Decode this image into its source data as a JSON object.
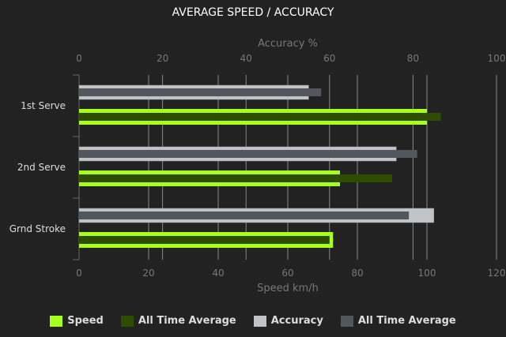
{
  "chart_data": {
    "type": "bar",
    "orientation": "horizontal",
    "title": "AVERAGE SPEED / ACCURACY",
    "categories": [
      "1st Serve",
      "2nd Serve",
      "Grnd Stroke"
    ],
    "speed_axis": {
      "label": "Speed km/h",
      "range": [
        0,
        120
      ],
      "ticks": [
        0,
        20,
        40,
        60,
        80,
        100,
        120
      ],
      "position": "bottom"
    },
    "accuracy_axis": {
      "label": "Accuracy %",
      "range": [
        0,
        100
      ],
      "ticks": [
        0,
        20,
        40,
        60,
        80,
        100
      ],
      "position": "top"
    },
    "grid": true,
    "legend_position": "bottom",
    "series": [
      {
        "name": "Speed",
        "axis": "speed",
        "color": "#a6ff1e",
        "values": [
          100,
          75,
          73
        ]
      },
      {
        "name": "All Time Average",
        "axis": "speed",
        "color": "#2f4d00",
        "values": [
          104,
          90,
          72
        ]
      },
      {
        "name": "Accuracy",
        "axis": "accuracy",
        "color": "#c0c4c7",
        "values": [
          55,
          76,
          85
        ]
      },
      {
        "name": "All Time Average",
        "axis": "accuracy",
        "color": "#52575e",
        "values": [
          58,
          81,
          79
        ]
      }
    ]
  }
}
